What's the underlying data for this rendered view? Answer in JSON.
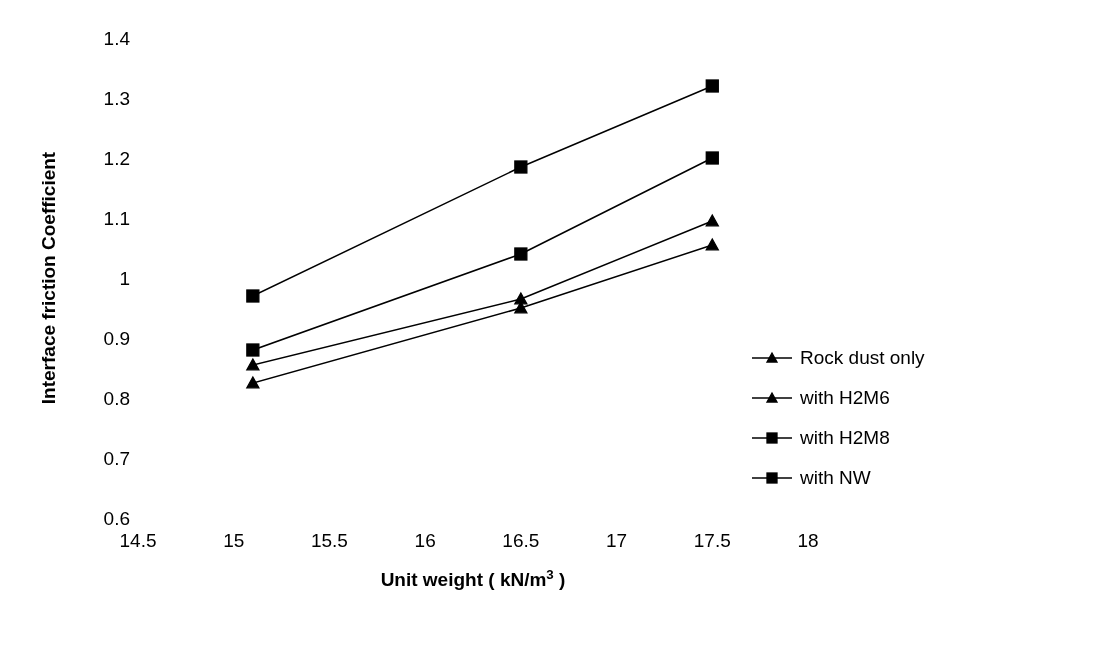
{
  "chart_data": {
    "type": "line",
    "xlabel": "Unit weight ( kN/m$^{3}$ )",
    "ylabel": "Interface friction Coefficient",
    "x": [
      15.1,
      16.5,
      17.5
    ],
    "series": [
      {
        "name": "Rock dust only",
        "color": "#000000",
        "marker": "triangle",
        "values": [
          0.825,
          0.95,
          1.055
        ]
      },
      {
        "name": "with H2M6",
        "color": "#000000",
        "marker": "triangle",
        "values": [
          0.855,
          0.965,
          1.095
        ]
      },
      {
        "name": "with H2M8",
        "color": "#000000",
        "marker": "square",
        "values": [
          0.88,
          1.04,
          1.2
        ]
      },
      {
        "name": "with NW",
        "color": "#000000",
        "marker": "square",
        "values": [
          0.97,
          1.185,
          1.32
        ]
      }
    ],
    "xlim": [
      14.5,
      18
    ],
    "xticks": [
      14.5,
      15,
      15.5,
      16,
      16.5,
      17,
      17.5,
      18
    ],
    "ylim": [
      0.6,
      1.4
    ],
    "yticks": [
      0.6,
      0.7,
      0.8,
      0.9,
      1,
      1.1,
      1.2,
      1.3,
      1.4
    ],
    "grid": false,
    "legend": "right",
    "line_style": "solid"
  }
}
